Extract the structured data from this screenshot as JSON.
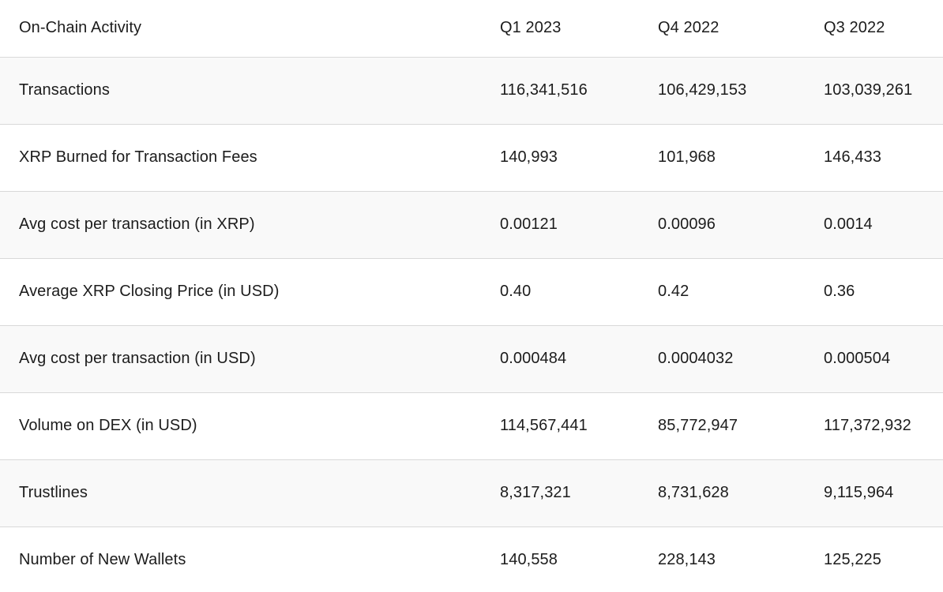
{
  "colors": {
    "page_background": "#ffffff",
    "row_alt_background": "#f9f9f9",
    "row_border": "#d9d9d9",
    "text": "#1c1c1c"
  },
  "table": {
    "header": {
      "title": "On-Chain Activity",
      "columns": [
        "Q1 2023",
        "Q4 2022",
        "Q3 2022"
      ]
    },
    "rows": [
      {
        "label": "Transactions",
        "values": [
          "116,341,516",
          "106,429,153",
          "103,039,261"
        ]
      },
      {
        "label": "XRP Burned for Transaction Fees",
        "values": [
          "140,993",
          "101,968",
          "146,433"
        ]
      },
      {
        "label": "Avg cost per transaction (in XRP)",
        "values": [
          "0.00121",
          "0.00096",
          "0.0014"
        ]
      },
      {
        "label": "Average XRP Closing Price (in USD)",
        "values": [
          "0.40",
          "0.42",
          "0.36"
        ]
      },
      {
        "label": "Avg cost per transaction (in USD)",
        "values": [
          "0.000484",
          "0.0004032",
          "0.000504"
        ]
      },
      {
        "label": "Volume on DEX (in USD)",
        "values": [
          "114,567,441",
          "85,772,947",
          "117,372,932"
        ]
      },
      {
        "label": "Trustlines",
        "values": [
          "8,317,321",
          "8,731,628",
          "9,115,964"
        ]
      },
      {
        "label": "Number of New Wallets",
        "values": [
          "140,558",
          "228,143",
          "125,225"
        ]
      }
    ]
  },
  "chart_data": {
    "type": "table",
    "title": "On-Chain Activity",
    "columns": [
      "Q1 2023",
      "Q4 2022",
      "Q3 2022"
    ],
    "rows": [
      {
        "metric": "Transactions",
        "values": [
          116341516,
          106429153,
          103039261
        ]
      },
      {
        "metric": "XRP Burned for Transaction Fees",
        "values": [
          140993,
          101968,
          146433
        ]
      },
      {
        "metric": "Avg cost per transaction (in XRP)",
        "values": [
          0.00121,
          0.00096,
          0.0014
        ]
      },
      {
        "metric": "Average XRP Closing Price (in USD)",
        "values": [
          0.4,
          0.42,
          0.36
        ]
      },
      {
        "metric": "Avg cost per transaction (in USD)",
        "values": [
          0.000484,
          0.0004032,
          0.000504
        ]
      },
      {
        "metric": "Volume on DEX (in USD)",
        "values": [
          114567441,
          85772947,
          117372932
        ]
      },
      {
        "metric": "Trustlines",
        "values": [
          8317321,
          8731628,
          9115964
        ]
      },
      {
        "metric": "Number of New Wallets",
        "values": [
          140558,
          228143,
          125225
        ]
      }
    ]
  }
}
